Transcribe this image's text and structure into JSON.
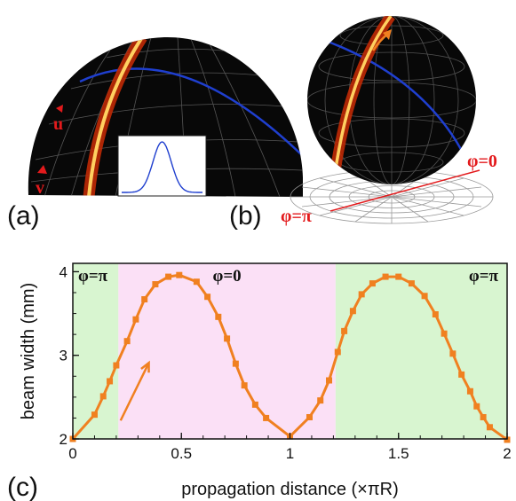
{
  "panels": {
    "a": {
      "label": "(a)",
      "u_label": "u",
      "v_label": "v"
    },
    "b": {
      "label": "(b)",
      "phi0_label": "φ=0",
      "phipi_label": "φ=π"
    },
    "c": {
      "label": "(c)"
    }
  },
  "colors": {
    "beam": "#f08020",
    "region_left": "#d8f5d0",
    "region_mid": "#fbe0f6",
    "region_right": "#d8f5d0",
    "blue_line": "#1f3fcf",
    "red_line": "#e31a1c"
  },
  "chart_data": {
    "type": "line",
    "title": "",
    "xlabel": "propagation distance (×πR)",
    "ylabel": "beam width (mm)",
    "xlim": [
      0,
      2
    ],
    "ylim": [
      2,
      4.1
    ],
    "xticks": [
      0,
      0.5,
      1,
      1.5,
      2
    ],
    "xtick_labels": [
      "0",
      "0.5",
      "1",
      "1.5",
      "2"
    ],
    "yticks": [
      2,
      3,
      4
    ],
    "ytick_labels": [
      "2",
      "3",
      "4"
    ],
    "regions": [
      {
        "label": "φ=π",
        "x0": 0,
        "x1": 0.21,
        "color": "#d8f5d0"
      },
      {
        "label": "φ=0",
        "x0": 0.21,
        "x1": 1.21,
        "color": "#fbe0f6"
      },
      {
        "label": "φ=π",
        "x0": 1.21,
        "x1": 2,
        "color": "#d8f5d0"
      }
    ],
    "series": [
      {
        "color": "#f08020",
        "x": [
          0,
          0.1,
          0.14,
          0.17,
          0.2,
          0.25,
          0.29,
          0.33,
          0.38,
          0.44,
          0.49,
          0.57,
          0.62,
          0.67,
          0.71,
          0.75,
          0.79,
          0.84,
          0.89,
          1.0,
          1.09,
          1.14,
          1.18,
          1.22,
          1.25,
          1.29,
          1.33,
          1.38,
          1.44,
          1.5,
          1.56,
          1.62,
          1.67,
          1.71,
          1.75,
          1.79,
          1.83,
          1.86,
          1.89,
          1.92,
          2.0
        ],
        "y": [
          2.0,
          2.29,
          2.51,
          2.69,
          2.88,
          3.17,
          3.43,
          3.67,
          3.85,
          3.94,
          3.96,
          3.88,
          3.7,
          3.46,
          3.2,
          2.9,
          2.64,
          2.41,
          2.25,
          2.03,
          2.26,
          2.46,
          2.7,
          3.04,
          3.29,
          3.53,
          3.73,
          3.86,
          3.94,
          3.94,
          3.86,
          3.71,
          3.49,
          3.26,
          3.02,
          2.77,
          2.57,
          2.39,
          2.26,
          2.14,
          1.99
        ]
      }
    ],
    "annotation": {
      "type": "arrow",
      "from": [
        0.22,
        2.22
      ],
      "to": [
        0.35,
        2.91
      ],
      "color": "#f08020"
    }
  }
}
